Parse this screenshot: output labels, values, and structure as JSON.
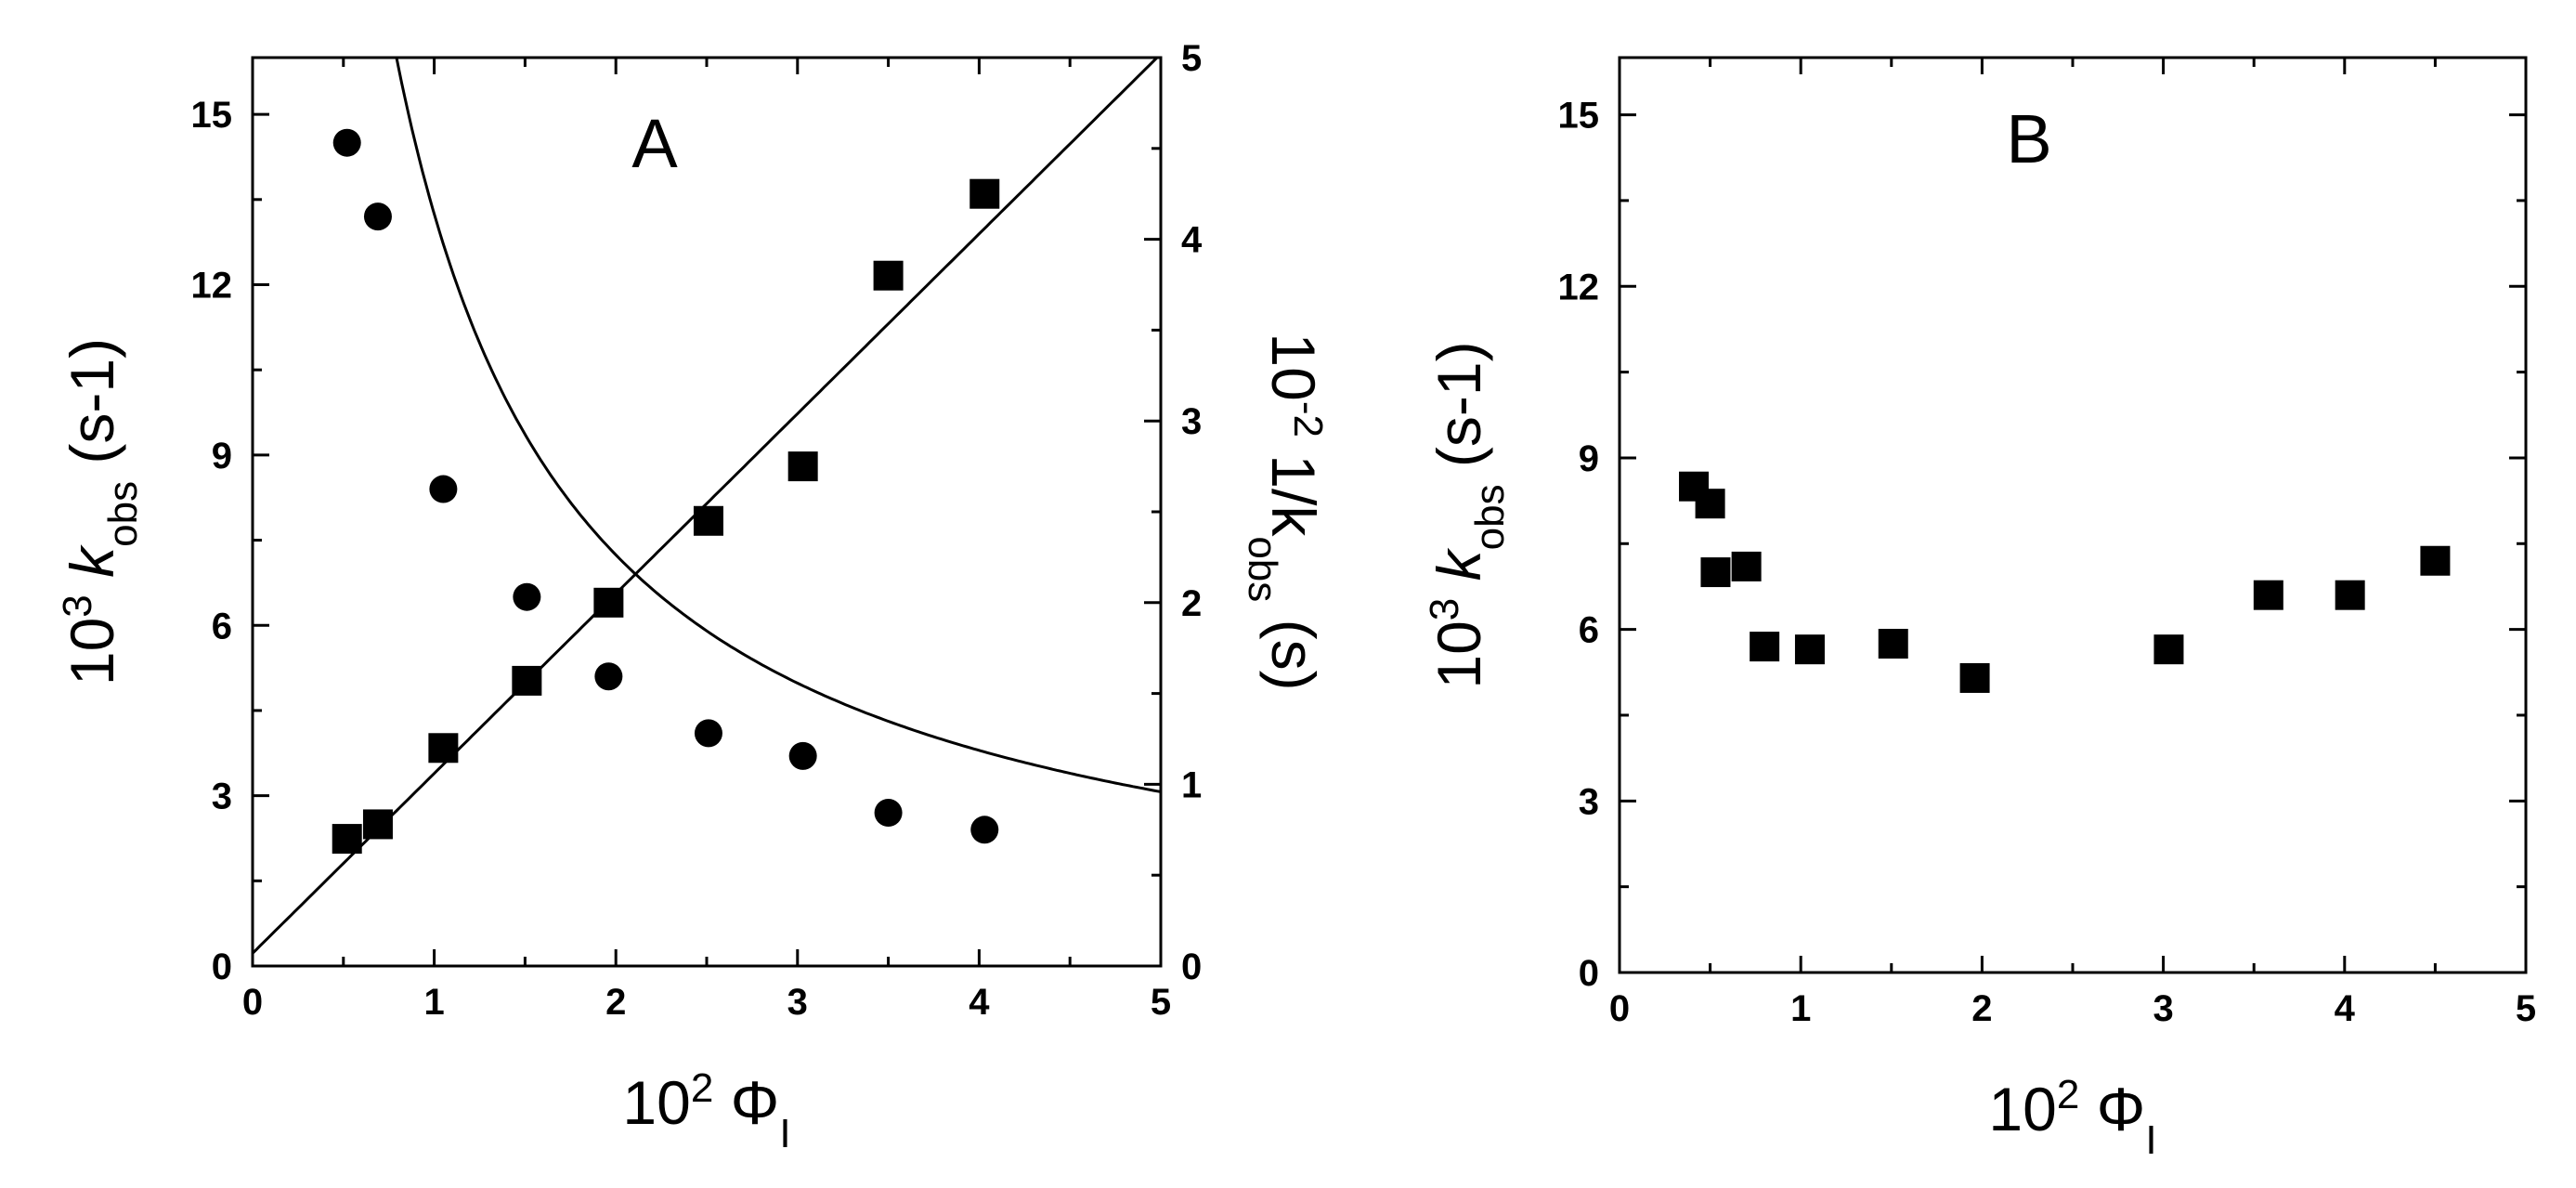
{
  "chart_data": [
    {
      "panel": "A",
      "type": "scatter",
      "title": "A",
      "xlabel": {
        "prefix": "10",
        "exponent": "2",
        "symbol": "Φ",
        "subscript": "I"
      },
      "ylabel": {
        "prefix": "10",
        "exponent": "3",
        "symbol": "k",
        "subscript": "obs",
        "suffix": "(s-1)"
      },
      "y2label": {
        "prefix": "10",
        "exponent": "-2",
        "symbol": "1/k",
        "subscript": "obs",
        "suffix": "(s)"
      },
      "xlim": [
        0,
        5
      ],
      "ylim": [
        0,
        16
      ],
      "y2lim": [
        0,
        5
      ],
      "x_ticks": [
        "0",
        "1",
        "2",
        "3",
        "4",
        "5"
      ],
      "y_ticks": [
        "0",
        "3",
        "6",
        "9",
        "12",
        "15"
      ],
      "y2_ticks": [
        "0",
        "1",
        "2",
        "3",
        "4",
        "5"
      ],
      "grid": false,
      "legend": "none",
      "series": [
        {
          "marker": "circle",
          "axis": "left",
          "x": [
            0.52,
            0.69,
            1.05,
            1.51,
            1.96,
            2.51,
            3.03,
            3.5,
            4.03
          ],
          "y": [
            14.5,
            13.2,
            8.4,
            6.5,
            5.1,
            4.1,
            3.7,
            2.7,
            2.4
          ]
        },
        {
          "marker": "square",
          "axis": "right",
          "x": [
            0.52,
            0.69,
            1.05,
            1.51,
            1.96,
            2.51,
            3.03,
            3.5,
            4.03
          ],
          "y": [
            0.7,
            0.78,
            1.2,
            1.57,
            2.0,
            2.45,
            2.75,
            3.8,
            4.25
          ]
        }
      ],
      "fits": [
        {
          "kind": "reciprocal",
          "axis": "left",
          "equation": "y = 1/(0.0129 + 0.0626 x)",
          "x_range": [
            0.42,
            5
          ]
        },
        {
          "kind": "linear",
          "axis": "right",
          "equation": "y = 0.07 + 0.99 x",
          "x_range": [
            0,
            5
          ]
        }
      ]
    },
    {
      "panel": "B",
      "type": "scatter",
      "title": "B",
      "xlabel": {
        "prefix": "10",
        "exponent": "2",
        "symbol": "Φ",
        "subscript": "I"
      },
      "ylabel": {
        "prefix": "10",
        "exponent": "3",
        "symbol": "k",
        "subscript": "obs",
        "suffix": "(s-1)"
      },
      "xlim": [
        0,
        5
      ],
      "ylim": [
        0,
        16
      ],
      "x_ticks": [
        "0",
        "1",
        "2",
        "3",
        "4",
        "5"
      ],
      "y_ticks": [
        "0",
        "3",
        "6",
        "9",
        "12",
        "15"
      ],
      "grid": false,
      "legend": "none",
      "series": [
        {
          "marker": "square",
          "axis": "left",
          "x": [
            0.41,
            0.5,
            0.53,
            0.7,
            0.8,
            1.05,
            1.51,
            1.96,
            3.03,
            3.58,
            4.03,
            4.5
          ],
          "y": [
            8.5,
            8.2,
            7.0,
            7.1,
            5.7,
            5.65,
            5.75,
            5.15,
            5.65,
            6.6,
            6.6,
            7.2
          ]
        }
      ]
    }
  ]
}
